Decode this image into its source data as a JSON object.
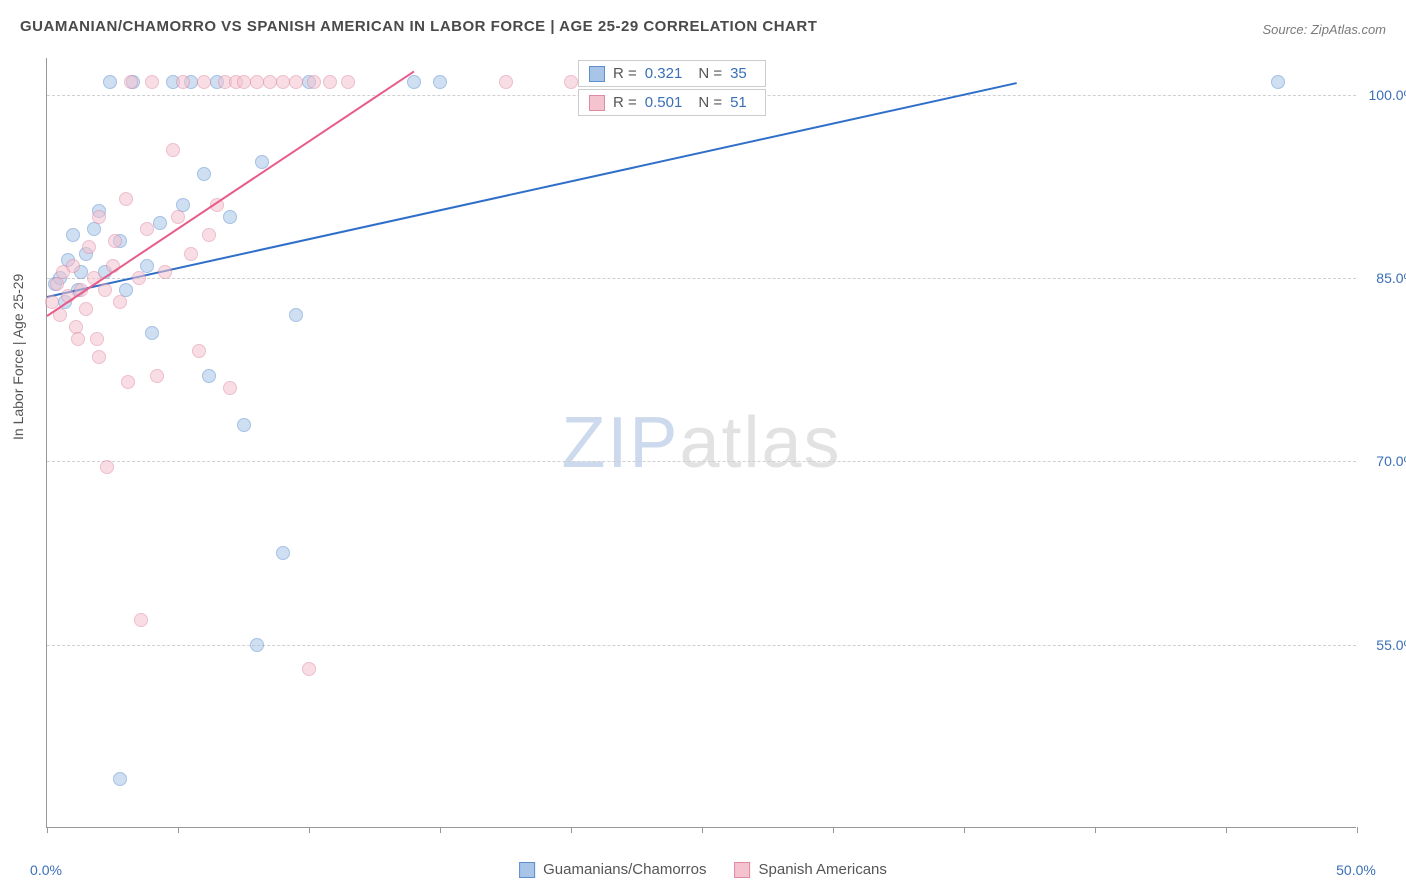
{
  "title": "GUAMANIAN/CHAMORRO VS SPANISH AMERICAN IN LABOR FORCE | AGE 25-29 CORRELATION CHART",
  "source": "Source: ZipAtlas.com",
  "y_axis_label": "In Labor Force | Age 25-29",
  "watermark_zip": "ZIP",
  "watermark_atlas": "atlas",
  "chart": {
    "type": "scatter",
    "background_color": "#ffffff",
    "grid_color": "#d0d0d0",
    "axis_color": "#999999",
    "xlim": [
      0,
      50
    ],
    "ylim": [
      40,
      103
    ],
    "x_ticks": [
      0,
      5,
      10,
      15,
      20,
      25,
      30,
      35,
      40,
      45,
      50
    ],
    "x_tick_labels": {
      "0": "0.0%",
      "50": "50.0%"
    },
    "y_ticks": [
      55,
      70,
      85,
      100
    ],
    "y_tick_labels": {
      "55": "55.0%",
      "70": "70.0%",
      "85": "85.0%",
      "100": "100.0%"
    },
    "marker_radius": 7,
    "marker_opacity": 0.55,
    "series": [
      {
        "name": "Guamanians/Chamorros",
        "color_fill": "#a8c5e8",
        "color_stroke": "#5b8fd1",
        "trend_color": "#2f6fc9",
        "R": "0.321",
        "N": "35",
        "trend_line": {
          "x1": 0,
          "y1": 83.5,
          "x2": 37,
          "y2": 101
        },
        "points": [
          [
            0.3,
            84.5
          ],
          [
            0.5,
            85.0
          ],
          [
            0.7,
            83.0
          ],
          [
            0.8,
            86.5
          ],
          [
            1.0,
            88.5
          ],
          [
            1.2,
            84.0
          ],
          [
            1.3,
            85.5
          ],
          [
            1.5,
            87.0
          ],
          [
            1.8,
            89.0
          ],
          [
            2.0,
            90.5
          ],
          [
            2.2,
            85.5
          ],
          [
            2.4,
            101
          ],
          [
            2.8,
            88.0
          ],
          [
            3.0,
            84.0
          ],
          [
            3.3,
            101
          ],
          [
            3.8,
            86.0
          ],
          [
            4.0,
            80.5
          ],
          [
            4.3,
            89.5
          ],
          [
            4.8,
            101
          ],
          [
            5.2,
            91.0
          ],
          [
            5.5,
            101
          ],
          [
            6.0,
            93.5
          ],
          [
            6.2,
            77.0
          ],
          [
            6.5,
            101
          ],
          [
            7.0,
            90.0
          ],
          [
            7.5,
            73.0
          ],
          [
            8.0,
            55.0
          ],
          [
            8.2,
            94.5
          ],
          [
            9.0,
            62.5
          ],
          [
            9.5,
            82.0
          ],
          [
            10.0,
            101
          ],
          [
            14.0,
            101
          ],
          [
            15.0,
            101
          ],
          [
            2.8,
            44.0
          ],
          [
            47.0,
            101
          ]
        ]
      },
      {
        "name": "Spanish Americans",
        "color_fill": "#f5c2cf",
        "color_stroke": "#e08aa3",
        "trend_color": "#e85c8a",
        "R": "0.501",
        "N": "51",
        "trend_line": {
          "x1": 0,
          "y1": 82.0,
          "x2": 14,
          "y2": 102
        },
        "points": [
          [
            0.2,
            83.0
          ],
          [
            0.4,
            84.5
          ],
          [
            0.5,
            82.0
          ],
          [
            0.6,
            85.5
          ],
          [
            0.8,
            83.5
          ],
          [
            1.0,
            86.0
          ],
          [
            1.1,
            81.0
          ],
          [
            1.2,
            80.0
          ],
          [
            1.3,
            84.0
          ],
          [
            1.5,
            82.5
          ],
          [
            1.6,
            87.5
          ],
          [
            1.8,
            85.0
          ],
          [
            1.9,
            80.0
          ],
          [
            2.0,
            78.5
          ],
          [
            2.0,
            90.0
          ],
          [
            2.2,
            84.0
          ],
          [
            2.3,
            69.5
          ],
          [
            2.5,
            86.0
          ],
          [
            2.6,
            88.0
          ],
          [
            2.8,
            83.0
          ],
          [
            3.0,
            91.5
          ],
          [
            3.1,
            76.5
          ],
          [
            3.2,
            101
          ],
          [
            3.5,
            85.0
          ],
          [
            3.6,
            57.0
          ],
          [
            3.8,
            89.0
          ],
          [
            4.0,
            101
          ],
          [
            4.2,
            77.0
          ],
          [
            4.5,
            85.5
          ],
          [
            4.8,
            95.5
          ],
          [
            5.0,
            90.0
          ],
          [
            5.2,
            101
          ],
          [
            5.5,
            87.0
          ],
          [
            5.8,
            79.0
          ],
          [
            6.0,
            101
          ],
          [
            6.2,
            88.5
          ],
          [
            6.5,
            91.0
          ],
          [
            6.8,
            101
          ],
          [
            7.0,
            76.0
          ],
          [
            7.2,
            101
          ],
          [
            7.5,
            101
          ],
          [
            8.0,
            101
          ],
          [
            8.5,
            101
          ],
          [
            9.0,
            101
          ],
          [
            9.5,
            101
          ],
          [
            10.0,
            53.0
          ],
          [
            10.2,
            101
          ],
          [
            10.8,
            101
          ],
          [
            11.5,
            101
          ],
          [
            17.5,
            101
          ],
          [
            20.0,
            101
          ]
        ]
      }
    ]
  },
  "legend_top": [
    {
      "series": 0,
      "R_label": "R =",
      "N_label": "N ="
    },
    {
      "series": 1,
      "R_label": "R =",
      "N_label": "N ="
    }
  ],
  "legend_bottom": [
    {
      "series": 0
    },
    {
      "series": 1
    }
  ]
}
